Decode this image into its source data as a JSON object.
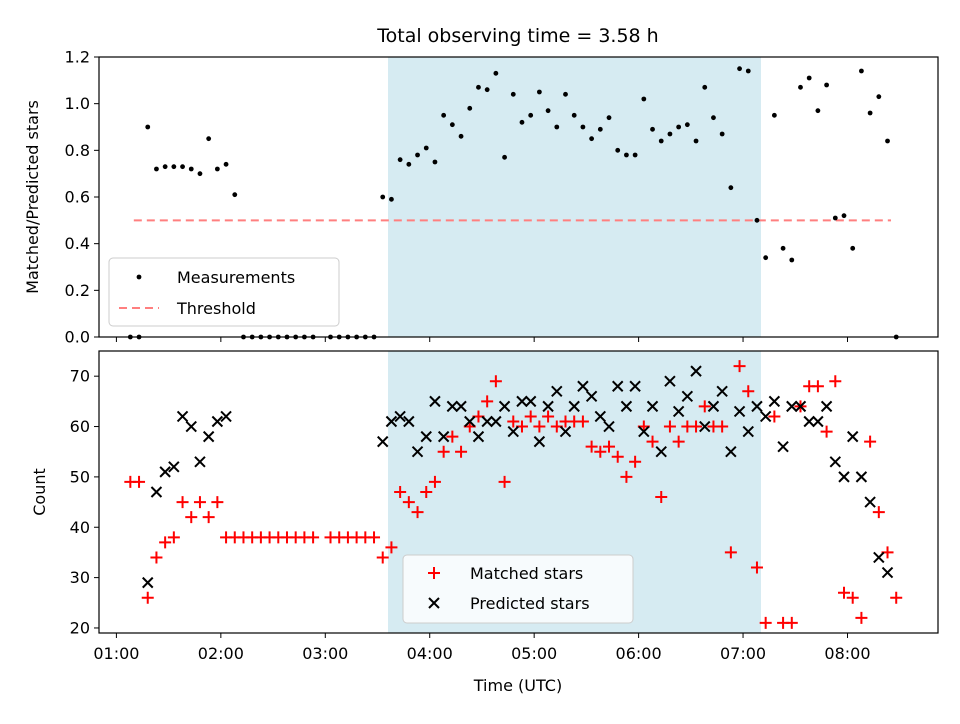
{
  "title": "Total observing time = 3.58 h",
  "colors": {
    "shade": "#add8e6",
    "measure": "#000000",
    "threshold": "#ff7f7f",
    "matched": "#ff0000",
    "predicted": "#000000"
  },
  "chart_data": [
    {
      "type": "scatter",
      "ylabel": "Matched/Predicted stars",
      "ylim": [
        0,
        1.2
      ],
      "yticks": [
        "0.0",
        "0.2",
        "0.4",
        "0.6",
        "0.8",
        "1.0",
        "1.2"
      ],
      "shaded_span": [
        "03:35",
        "07:10"
      ],
      "threshold": {
        "name": "Threshold",
        "value": 0.5,
        "x_range": [
          "01:10",
          "08:25"
        ]
      },
      "legend": {
        "position": "lower-left",
        "entries": [
          "Measurements",
          "Threshold"
        ]
      },
      "series": [
        {
          "name": "Measurements",
          "x": [
            "01:08",
            "01:13",
            "01:18",
            "01:23",
            "01:28",
            "01:33",
            "01:38",
            "01:43",
            "01:48",
            "01:53",
            "01:58",
            "02:03",
            "02:08",
            "02:13",
            "02:18",
            "02:23",
            "02:28",
            "02:33",
            "02:38",
            "02:43",
            "02:48",
            "02:53",
            "03:03",
            "03:08",
            "03:13",
            "03:18",
            "03:23",
            "03:28",
            "03:33",
            "03:38",
            "03:43",
            "03:48",
            "03:53",
            "03:58",
            "04:03",
            "04:08",
            "04:13",
            "04:18",
            "04:23",
            "04:28",
            "04:33",
            "04:38",
            "04:43",
            "04:48",
            "04:53",
            "04:58",
            "05:03",
            "05:08",
            "05:13",
            "05:18",
            "05:23",
            "05:28",
            "05:33",
            "05:38",
            "05:43",
            "05:48",
            "05:53",
            "05:58",
            "06:03",
            "06:08",
            "06:13",
            "06:18",
            "06:23",
            "06:28",
            "06:33",
            "06:38",
            "06:43",
            "06:48",
            "06:53",
            "06:58",
            "07:03",
            "07:08",
            "07:13",
            "07:18",
            "07:23",
            "07:28",
            "07:33",
            "07:38",
            "07:43",
            "07:48",
            "07:53",
            "07:58",
            "08:03",
            "08:08",
            "08:13",
            "08:18",
            "08:23",
            "08:28"
          ],
          "y": [
            0.0,
            0.0,
            0.9,
            0.72,
            0.73,
            0.73,
            0.73,
            0.72,
            0.7,
            0.85,
            0.72,
            0.74,
            0.61,
            0.0,
            0.0,
            0.0,
            0.0,
            0.0,
            0.0,
            0.0,
            0.0,
            0.0,
            0.0,
            0.0,
            0.0,
            0.0,
            0.0,
            0.0,
            0.6,
            0.59,
            0.76,
            0.74,
            0.78,
            0.81,
            0.75,
            0.95,
            0.91,
            0.86,
            0.98,
            1.07,
            1.06,
            1.13,
            0.77,
            1.04,
            0.92,
            0.95,
            1.05,
            0.97,
            0.9,
            1.04,
            0.95,
            0.9,
            0.85,
            0.89,
            0.94,
            0.8,
            0.78,
            0.78,
            1.02,
            0.89,
            0.84,
            0.87,
            0.9,
            0.91,
            0.84,
            1.07,
            0.94,
            0.87,
            0.64,
            1.15,
            1.14,
            0.5,
            0.34,
            0.95,
            0.38,
            0.33,
            1.07,
            1.11,
            0.97,
            1.08,
            0.51,
            0.52,
            0.38,
            1.14,
            0.96,
            1.03,
            0.84,
            0.0
          ]
        }
      ]
    },
    {
      "type": "scatter",
      "title": "",
      "xlabel": "Time (UTC)",
      "ylabel": "Count",
      "ylim": [
        19,
        75
      ],
      "yticks": [
        "20",
        "30",
        "40",
        "50",
        "60",
        "70"
      ],
      "xticks": [
        "01:00",
        "02:00",
        "03:00",
        "04:00",
        "05:00",
        "06:00",
        "07:00",
        "08:00"
      ],
      "xlim": [
        "00:50",
        "08:52"
      ],
      "shaded_span": [
        "03:35",
        "07:10"
      ],
      "legend": {
        "position": "lower-center",
        "entries": [
          "Matched stars",
          "Predicted stars"
        ]
      },
      "series": [
        {
          "name": "Matched stars",
          "x": [
            "01:08",
            "01:13",
            "01:18",
            "01:23",
            "01:28",
            "01:33",
            "01:38",
            "01:43",
            "01:48",
            "01:53",
            "01:58",
            "02:03",
            "02:08",
            "02:13",
            "02:18",
            "02:23",
            "02:28",
            "02:33",
            "02:38",
            "02:43",
            "02:48",
            "02:53",
            "03:03",
            "03:08",
            "03:13",
            "03:18",
            "03:23",
            "03:28",
            "03:33",
            "03:38",
            "03:43",
            "03:48",
            "03:53",
            "03:58",
            "04:03",
            "04:08",
            "04:13",
            "04:18",
            "04:23",
            "04:28",
            "04:33",
            "04:38",
            "04:43",
            "04:48",
            "04:53",
            "04:58",
            "05:03",
            "05:08",
            "05:13",
            "05:18",
            "05:23",
            "05:28",
            "05:33",
            "05:38",
            "05:43",
            "05:48",
            "05:53",
            "05:58",
            "06:03",
            "06:08",
            "06:13",
            "06:18",
            "06:23",
            "06:28",
            "06:33",
            "06:38",
            "06:43",
            "06:48",
            "06:53",
            "06:58",
            "07:03",
            "07:08",
            "07:13",
            "07:18",
            "07:23",
            "07:28",
            "07:33",
            "07:38",
            "07:43",
            "07:48",
            "07:53",
            "07:58",
            "08:03",
            "08:08",
            "08:13",
            "08:18",
            "08:23",
            "08:28"
          ],
          "y": [
            49,
            49,
            26,
            34,
            37,
            38,
            45,
            42,
            45,
            42,
            45,
            38,
            38,
            38,
            38,
            38,
            38,
            38,
            38,
            38,
            38,
            38,
            38,
            38,
            38,
            38,
            38,
            38,
            34,
            36,
            47,
            45,
            43,
            47,
            49,
            55,
            58,
            55,
            60,
            62,
            65,
            69,
            49,
            61,
            60,
            62,
            60,
            62,
            60,
            61,
            61,
            61,
            56,
            55,
            56,
            54,
            50,
            53,
            60,
            57,
            46,
            60,
            57,
            60,
            60,
            64,
            60,
            60,
            35,
            72,
            67,
            32,
            21,
            62,
            21,
            21,
            64,
            68,
            68,
            59,
            69,
            27,
            26,
            22,
            57,
            43,
            35,
            26
          ]
        },
        {
          "name": "Predicted stars",
          "x": [
            "01:18",
            "01:23",
            "01:28",
            "01:33",
            "01:38",
            "01:43",
            "01:48",
            "01:53",
            "01:58",
            "02:03",
            "03:33",
            "03:38",
            "03:43",
            "03:48",
            "03:53",
            "03:58",
            "04:03",
            "04:08",
            "04:13",
            "04:18",
            "04:23",
            "04:28",
            "04:33",
            "04:38",
            "04:43",
            "04:48",
            "04:53",
            "04:58",
            "05:03",
            "05:08",
            "05:13",
            "05:18",
            "05:23",
            "05:28",
            "05:33",
            "05:38",
            "05:43",
            "05:48",
            "05:53",
            "05:58",
            "06:03",
            "06:08",
            "06:13",
            "06:18",
            "06:23",
            "06:28",
            "06:33",
            "06:38",
            "06:43",
            "06:48",
            "06:53",
            "06:58",
            "07:03",
            "07:08",
            "07:13",
            "07:18",
            "07:23",
            "07:28",
            "07:33",
            "07:38",
            "07:43",
            "07:48",
            "07:53",
            "07:58",
            "08:03",
            "08:08",
            "08:13",
            "08:18",
            "08:23"
          ],
          "y": [
            29,
            47,
            51,
            52,
            62,
            60,
            53,
            58,
            61,
            62,
            57,
            61,
            62,
            61,
            55,
            58,
            65,
            58,
            64,
            64,
            61,
            58,
            61,
            61,
            64,
            59,
            65,
            65,
            57,
            64,
            67,
            59,
            64,
            68,
            66,
            62,
            60,
            68,
            64,
            68,
            59,
            64,
            55,
            69,
            63,
            66,
            71,
            60,
            64,
            67,
            55,
            63,
            59,
            64,
            62,
            65,
            56,
            64,
            64,
            61,
            61,
            64,
            53,
            50,
            58,
            50,
            45,
            34,
            31
          ]
        }
      ]
    }
  ]
}
